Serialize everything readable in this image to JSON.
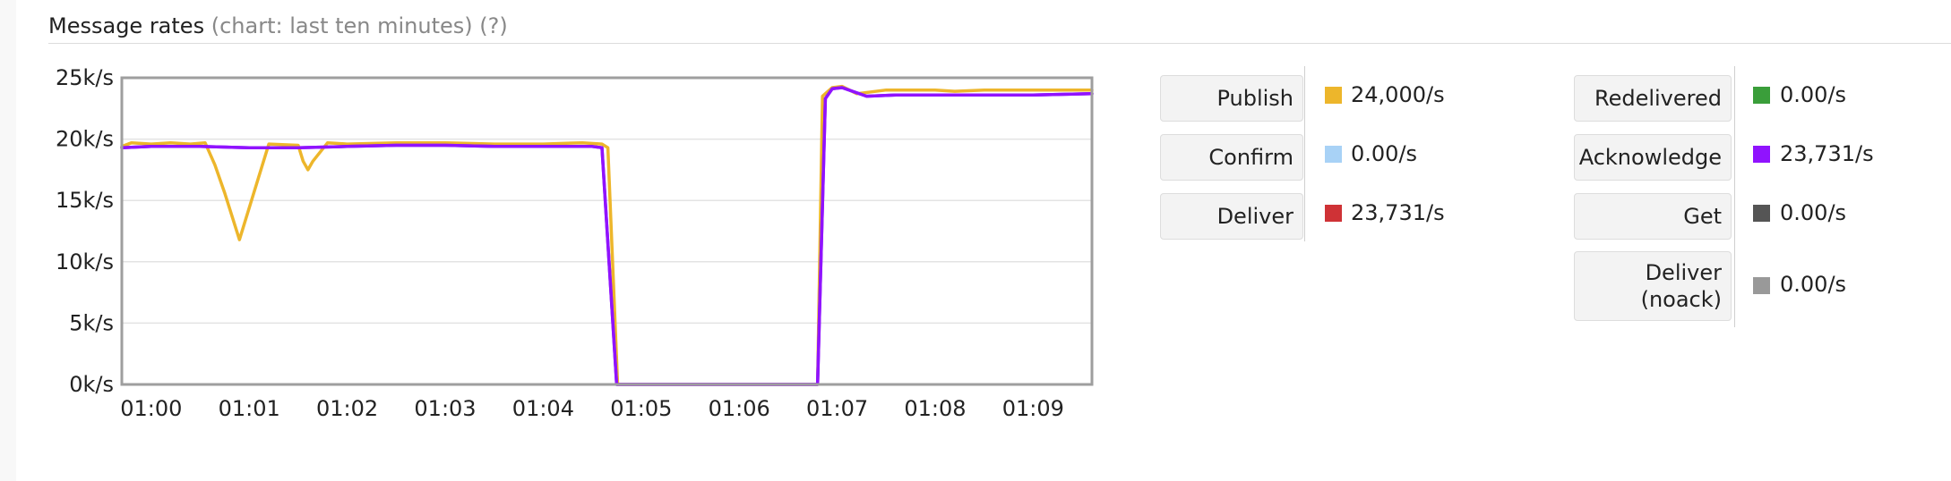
{
  "header": {
    "title": "Message rates",
    "subtitle": "(chart: last ten minutes)",
    "help": "(?)"
  },
  "chart_data": {
    "type": "line",
    "title": "Message rates",
    "xlabel": "",
    "ylabel": "",
    "x_tick_labels": [
      "01:00",
      "01:01",
      "01:02",
      "01:03",
      "01:04",
      "01:05",
      "01:06",
      "01:07",
      "01:08",
      "01:09"
    ],
    "y_tick_labels": [
      "0k/s",
      "5k/s",
      "10k/s",
      "15k/s",
      "20k/s",
      "25k/s"
    ],
    "y_tick_values": [
      0,
      5000,
      10000,
      15000,
      20000,
      25000
    ],
    "ylim": [
      0,
      25000
    ],
    "xlim_minutes": [
      59.7,
      69.6
    ],
    "series": [
      {
        "name": "Publish",
        "color": "#EDB62B",
        "x": [
          59.7,
          59.8,
          60.0,
          60.2,
          60.4,
          60.55,
          60.65,
          60.75,
          60.9,
          61.2,
          61.5,
          61.55,
          61.6,
          61.65,
          61.8,
          62.0,
          62.5,
          63.0,
          63.5,
          64.0,
          64.4,
          64.6,
          64.66,
          64.76,
          66.8,
          66.85,
          66.95,
          67.05,
          67.2,
          67.5,
          68.0,
          68.2,
          68.5,
          69.0,
          69.6
        ],
        "y": [
          19400,
          19700,
          19600,
          19700,
          19600,
          19700,
          17900,
          15600,
          11800,
          19600,
          19500,
          18200,
          17500,
          18200,
          19700,
          19600,
          19700,
          19700,
          19600,
          19600,
          19700,
          19600,
          19300,
          0,
          0,
          23500,
          24200,
          24300,
          23700,
          24000,
          24000,
          23900,
          24000,
          24000,
          24000
        ]
      },
      {
        "name": "Deliver",
        "color": "#9013FE",
        "x": [
          59.7,
          60.0,
          60.5,
          61.0,
          61.5,
          62.0,
          62.5,
          63.0,
          63.5,
          64.0,
          64.5,
          64.6,
          64.75,
          66.8,
          66.88,
          66.95,
          67.05,
          67.3,
          67.6,
          68.0,
          68.5,
          69.0,
          69.6
        ],
        "y": [
          19300,
          19400,
          19400,
          19300,
          19300,
          19400,
          19500,
          19500,
          19400,
          19400,
          19400,
          19300,
          0,
          0,
          23300,
          24100,
          24200,
          23500,
          23600,
          23600,
          23600,
          23600,
          23700
        ]
      },
      {
        "name": "Acknowledge",
        "color": "#9013FE",
        "x": [
          59.7,
          60.0,
          60.5,
          61.0,
          61.5,
          62.0,
          62.5,
          63.0,
          63.5,
          64.0,
          64.5,
          64.6,
          64.75,
          66.8,
          66.88,
          66.95,
          67.05,
          67.3,
          67.6,
          68.0,
          68.5,
          69.0,
          69.6
        ],
        "y": [
          19300,
          19400,
          19400,
          19300,
          19300,
          19400,
          19500,
          19500,
          19400,
          19400,
          19400,
          19300,
          0,
          0,
          23300,
          24100,
          24200,
          23500,
          23600,
          23600,
          23600,
          23600,
          23700
        ]
      }
    ]
  },
  "legend": {
    "left": [
      {
        "label": "Publish",
        "value": "24,000/s",
        "color": "#EDB62B"
      },
      {
        "label": "Confirm",
        "value": "0.00/s",
        "color": "#A8D2F6"
      },
      {
        "label": "Deliver",
        "value": "23,731/s",
        "color": "#CF3236"
      }
    ],
    "right": [
      {
        "label": "Redelivered",
        "value": "0.00/s",
        "color": "#3A9E3A"
      },
      {
        "label": "Acknowledge",
        "value": "23,731/s",
        "color": "#9013FE"
      },
      {
        "label": "Get",
        "value": "0.00/s",
        "color": "#555555"
      },
      {
        "label_line1": "Deliver",
        "label_line2": "(noack)",
        "value": "0.00/s",
        "color": "#999999"
      }
    ]
  }
}
